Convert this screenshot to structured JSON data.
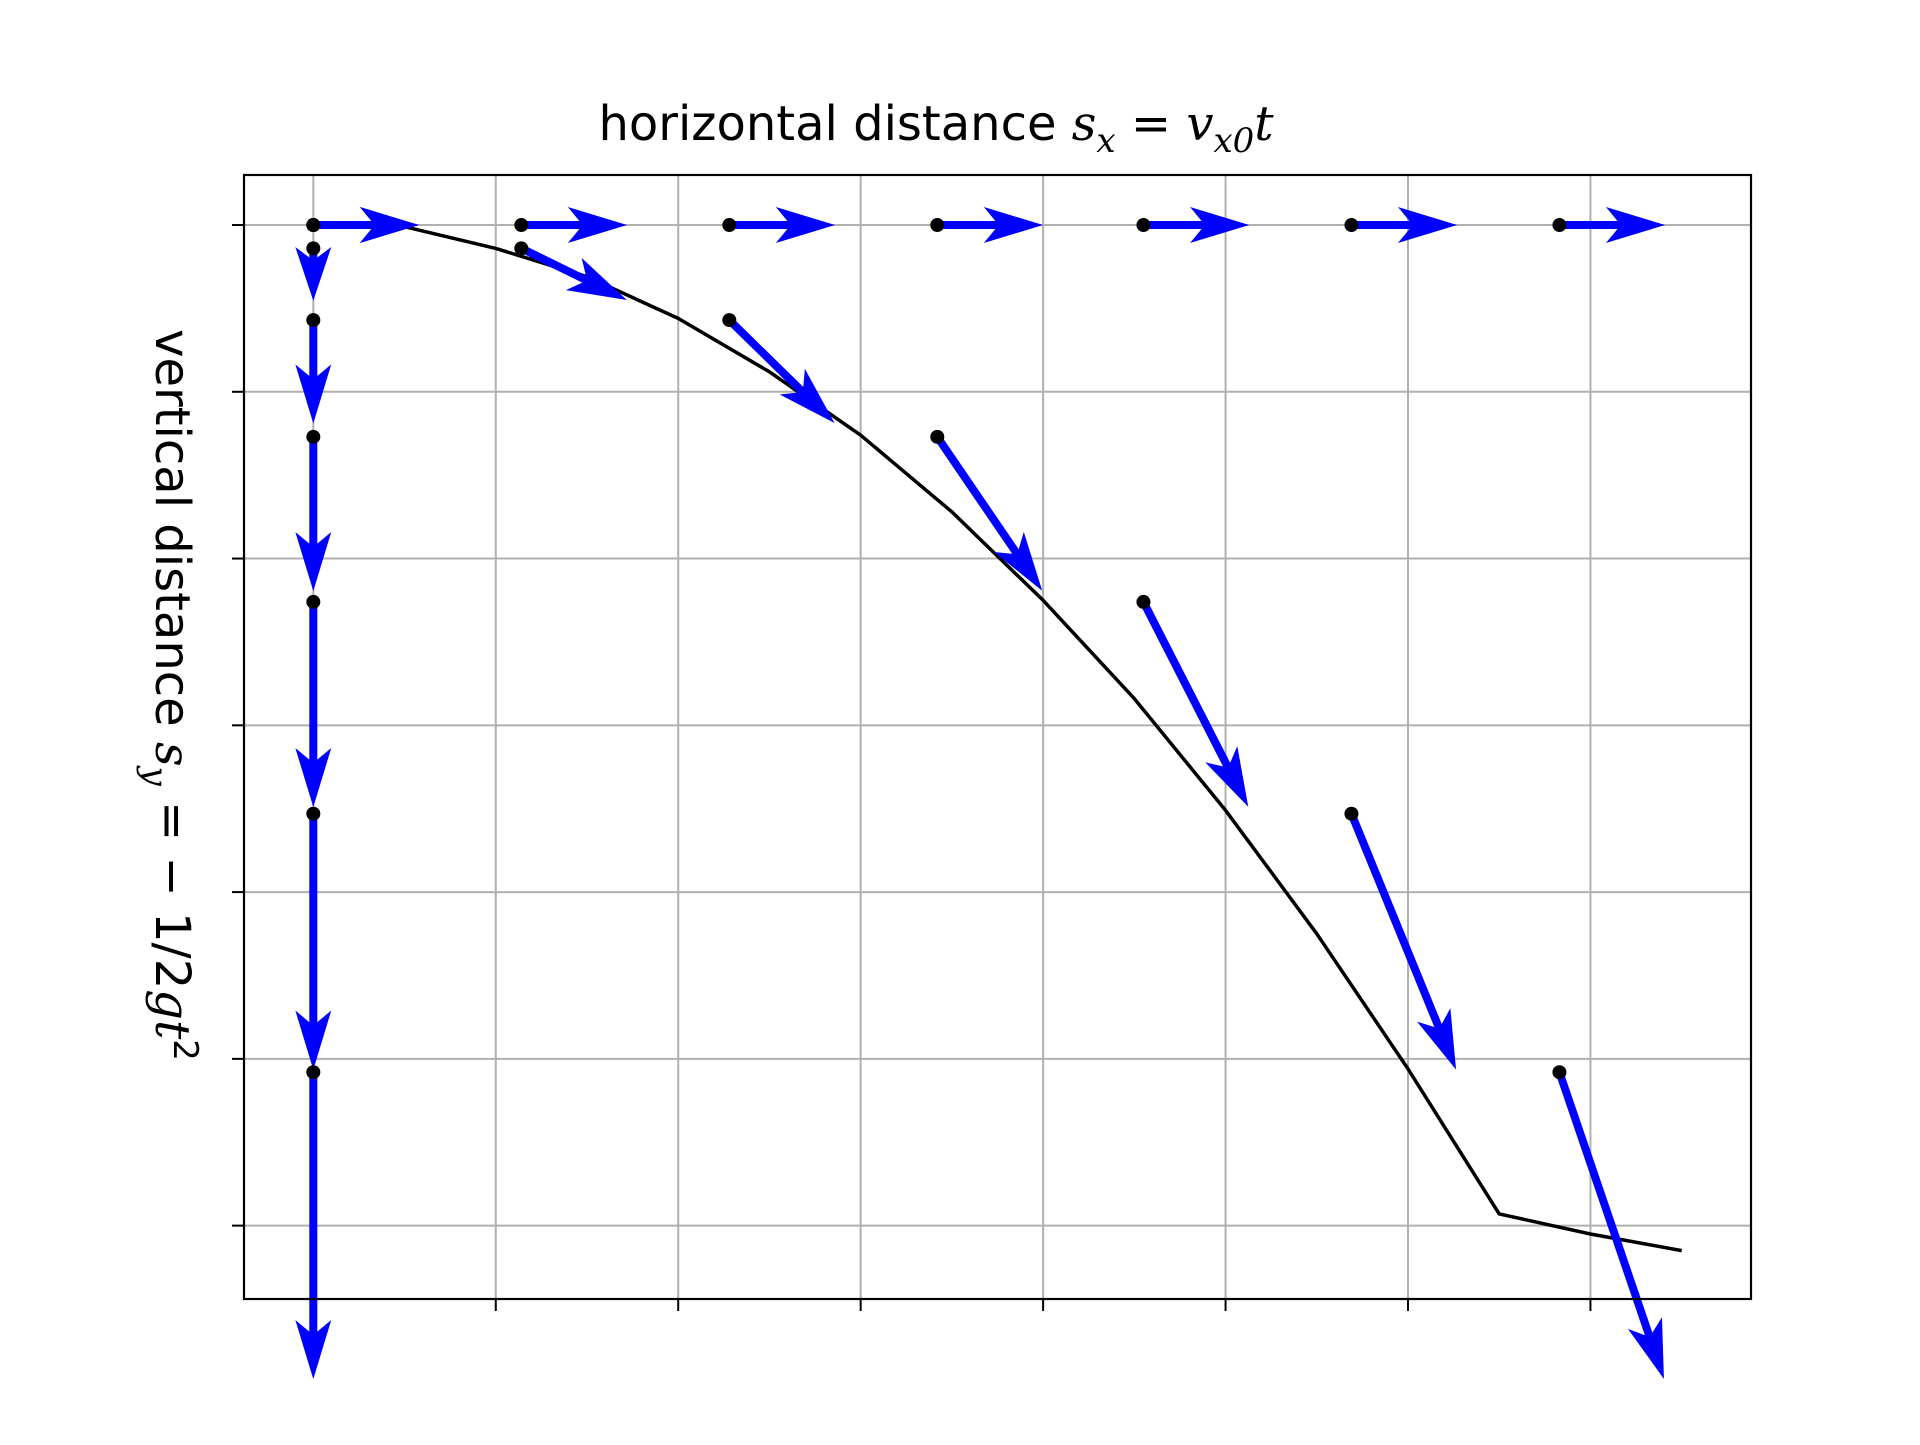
{
  "chart_data": {
    "type": "line",
    "title": {
      "prefix": "horizontal distance ",
      "lhs_var": "s",
      "lhs_sub": "x",
      "equals": " = ",
      "rhs_var": "v",
      "rhs_sub": "x0",
      "rhs_t": "t"
    },
    "ylabel": {
      "prefix": "vertical distance ",
      "lhs_var": "s",
      "lhs_sub": "y",
      "rhs": " = − 1/2",
      "g": "g",
      "t": "t",
      "exp": "2"
    },
    "xlim": [
      -0.38,
      7.88
    ],
    "ylim": [
      -6.44,
      0.3
    ],
    "xticks": [
      0,
      1,
      2,
      3,
      4,
      5,
      6,
      7
    ],
    "yticks": [
      0,
      -1,
      -2,
      -3,
      -4,
      -5,
      -6
    ],
    "tick_labels_visible": false,
    "grid": true,
    "trajectory_x": [
      0,
      0.5,
      1,
      1.5,
      2,
      2.5,
      3,
      3.5,
      4,
      4.5,
      5,
      5.5,
      6,
      6.5,
      7,
      7.5
    ],
    "trajectory_y": [
      0,
      -0.01,
      -0.14,
      -0.31,
      -0.56,
      -0.88,
      -1.26,
      -1.72,
      -2.25,
      -2.84,
      -3.51,
      -4.25,
      -5.06,
      -5.93,
      -6.05,
      -6.15
    ],
    "points_t": [
      0,
      1,
      2,
      3,
      4,
      5,
      6
    ],
    "point_x": [
      0,
      1.14,
      2.28,
      3.42,
      4.55,
      5.69,
      6.83
    ],
    "point_y": [
      0,
      -0.14,
      -0.57,
      -1.27,
      -2.26,
      -3.53,
      -5.08
    ],
    "vx0": 0.57,
    "vy_per_t": -0.305,
    "horizontal_arrows": {
      "x": [
        0,
        1.14,
        2.28,
        3.42,
        4.55,
        5.69,
        6.83
      ],
      "y": 0,
      "dx": 0.57,
      "dy": 0
    },
    "vertical_arrows": {
      "x": 0,
      "y": [
        0,
        -0.14,
        -0.57,
        -1.27,
        -2.26,
        -3.53,
        -5.08
      ],
      "dx": 0,
      "dy": [
        0,
        -0.305,
        -0.61,
        -0.915,
        -1.22,
        -1.525,
        -1.83
      ]
    },
    "colors": {
      "trajectory": "#000000",
      "arrows": "#0000ff",
      "points": "#000000",
      "grid": "#b0b0b0",
      "frame": "#000000"
    }
  }
}
